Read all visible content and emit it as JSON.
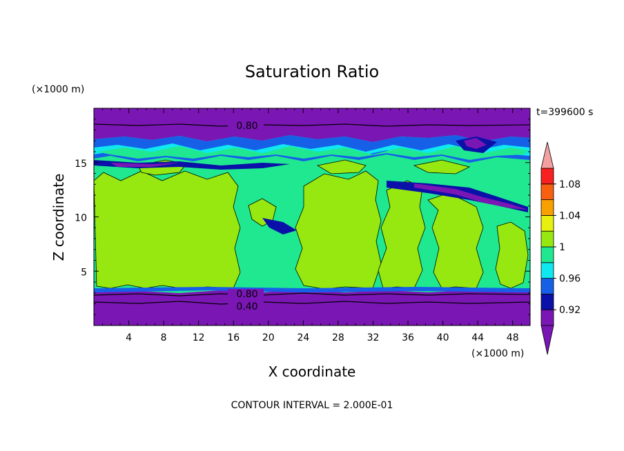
{
  "chart_data": {
    "type": "heatmap",
    "title": "Saturation Ratio",
    "xlabel": "X coordinate",
    "ylabel": "Z coordinate",
    "x_unit": "(×1000 m)",
    "y_unit": "(×1000 m)",
    "time_label": "t=399600 s",
    "footer": "CONTOUR INTERVAL = 2.000E-01",
    "xlim": [
      0,
      50
    ],
    "ylim": [
      0,
      20
    ],
    "x_ticks": [
      "4",
      "8",
      "12",
      "16",
      "20",
      "24",
      "28",
      "32",
      "36",
      "40",
      "44",
      "48"
    ],
    "y_ticks": [
      "5",
      "10",
      "15"
    ],
    "contour_labels": [
      {
        "text": "0.80",
        "x": 17.5,
        "z": 18.1
      },
      {
        "text": "0.80",
        "x": 17.5,
        "z": 3.0
      },
      {
        "text": "0.40",
        "x": 17.5,
        "z": 1.7
      }
    ],
    "colorbar": {
      "levels": [
        0.9,
        0.92,
        0.94,
        0.96,
        0.98,
        1.0,
        1.02,
        1.04,
        1.06,
        1.08,
        1.1
      ],
      "tick_labels": [
        "0.92",
        "0.96",
        "1",
        "1.04",
        "1.08"
      ],
      "colors": [
        "#7a16b4",
        "#0a10a8",
        "#1660e8",
        "#10e8f0",
        "#20e890",
        "#96e810",
        "#e8f010",
        "#f8a000",
        "#f86010",
        "#f82020",
        "#f4a0a0"
      ]
    },
    "bands_summary": [
      {
        "z_range": [
          0,
          3.5
        ],
        "value_range": "<0.90"
      },
      {
        "z_range": [
          3.5,
          16
        ],
        "value_range": "0.98-1.02"
      },
      {
        "z_range": [
          16,
          17.2
        ],
        "value_range": "0.92-0.98"
      },
      {
        "z_range": [
          17.2,
          20
        ],
        "value_range": "<0.90"
      }
    ]
  }
}
